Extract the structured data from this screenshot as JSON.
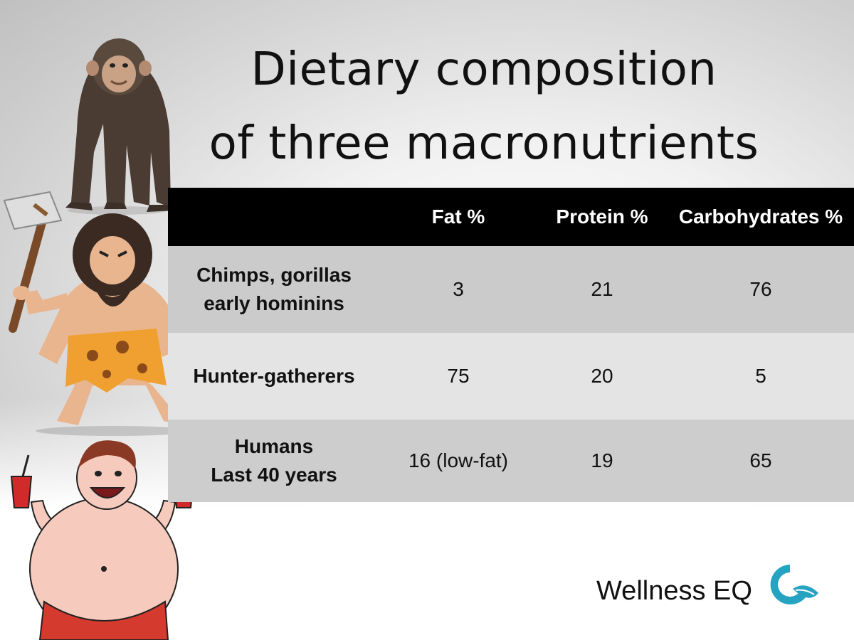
{
  "title": {
    "line1": "Dietary composition",
    "line2": "of three macronutrients"
  },
  "table": {
    "headers": [
      "",
      "Fat %",
      "Protein %",
      "Carbohydrates %"
    ],
    "rows": [
      {
        "group_lines": [
          "Chimps, gorillas",
          "early hominins"
        ],
        "fat": "3",
        "protein": "21",
        "carbohydrates": "76"
      },
      {
        "group_lines": [
          "Hunter-gatherers"
        ],
        "fat": "75",
        "protein": "20",
        "carbohydrates": "5"
      },
      {
        "group_lines": [
          "Humans",
          "Last 40 years"
        ],
        "fat": "16 (low-fat)",
        "protein": "19",
        "carbohydrates": "65"
      }
    ]
  },
  "brand": {
    "name": "Wellness EQ",
    "logo_color": "#27a3c2"
  },
  "illustrations": [
    "chimpanzee-illustration",
    "caveman-illustration",
    "overweight-man-illustration"
  ]
}
